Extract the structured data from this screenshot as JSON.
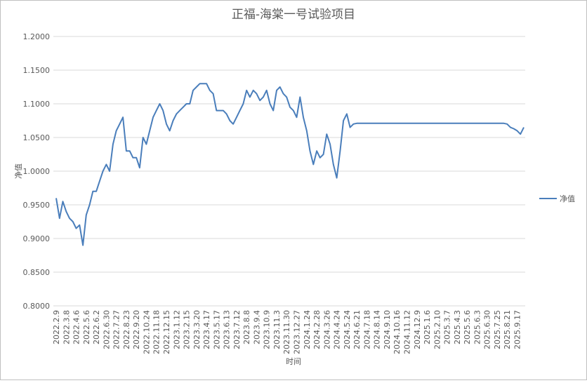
{
  "chart_data": {
    "type": "line",
    "title": "正福-海棠一号试验项目",
    "x_label": "时间",
    "y_label": "净值",
    "categories": [
      "2022.2.9",
      null,
      null,
      "2022.3.8",
      null,
      null,
      "2022.4.6",
      null,
      null,
      "2022.5.6",
      null,
      null,
      "2022.6.2",
      null,
      null,
      "2022.6.30",
      null,
      null,
      "2022.7.27",
      null,
      null,
      "2022.8.23",
      null,
      null,
      "2022.9.20",
      null,
      null,
      "2022.10.24",
      null,
      null,
      "2022.11.18",
      null,
      null,
      "2022.12.15",
      null,
      null,
      "2023.1.12",
      null,
      null,
      "2023.2.15",
      null,
      null,
      "2023.3.20",
      null,
      null,
      "2023.4.17",
      null,
      null,
      "2023.5.17",
      null,
      null,
      "2023.6.13",
      null,
      null,
      "2023.7.12",
      null,
      null,
      "2023.8.8",
      null,
      null,
      "2023.9.4",
      null,
      null,
      "2023.10.9",
      null,
      null,
      "2023.11.3",
      null,
      null,
      "2023.11.30",
      null,
      null,
      "2023.12.27",
      null,
      null,
      "2024.1.24",
      null,
      null,
      "2024.2.28",
      null,
      null,
      "2024.3.26",
      null,
      null,
      "2024.4.24",
      null,
      null,
      "2024.5.24",
      null,
      null,
      "2024.6.21",
      null,
      null,
      "2024.7.18",
      null,
      null,
      "2024.8.14",
      null,
      null,
      "2024.9.10",
      null,
      null,
      "2024.10.16",
      null,
      null,
      "2024.11.12",
      null,
      null,
      "2024.12.9",
      null,
      null,
      "2025.1.6",
      null,
      null,
      "2025.2.10",
      null,
      null,
      "2025.3.7",
      null,
      null,
      "2025.4.3",
      null,
      null,
      "2025.5.6",
      null,
      null,
      "2025.6.3",
      null,
      null,
      "2025.6.30",
      null,
      null,
      "2025.7.25",
      null,
      null,
      "2025.8.21",
      null,
      null,
      "2025.9.17",
      null,
      null
    ],
    "series": [
      {
        "name": "净值",
        "color": "#4a7ebb",
        "values": [
          0.96,
          0.93,
          0.955,
          0.94,
          0.93,
          0.925,
          0.915,
          0.92,
          0.89,
          0.935,
          0.95,
          0.97,
          0.97,
          0.985,
          1.0,
          1.01,
          1.0,
          1.04,
          1.06,
          1.07,
          1.08,
          1.03,
          1.03,
          1.02,
          1.02,
          1.005,
          1.05,
          1.04,
          1.06,
          1.08,
          1.09,
          1.1,
          1.09,
          1.07,
          1.06,
          1.075,
          1.085,
          1.09,
          1.095,
          1.1,
          1.1,
          1.12,
          1.125,
          1.13,
          1.13,
          1.13,
          1.12,
          1.115,
          1.09,
          1.09,
          1.09,
          1.085,
          1.075,
          1.07,
          1.08,
          1.09,
          1.1,
          1.12,
          1.11,
          1.12,
          1.115,
          1.105,
          1.11,
          1.12,
          1.1,
          1.09,
          1.12,
          1.125,
          1.115,
          1.11,
          1.095,
          1.09,
          1.08,
          1.11,
          1.08,
          1.06,
          1.03,
          1.01,
          1.03,
          1.02,
          1.025,
          1.055,
          1.04,
          1.01,
          0.99,
          1.03,
          1.075,
          1.085,
          1.065,
          1.07,
          1.071,
          1.071,
          1.071,
          1.071,
          1.071,
          1.071,
          1.071,
          1.071,
          1.071,
          1.071,
          1.071,
          1.071,
          1.071,
          1.071,
          1.071,
          1.071,
          1.071,
          1.071,
          1.071,
          1.071,
          1.071,
          1.071,
          1.071,
          1.071,
          1.071,
          1.071,
          1.071,
          1.071,
          1.071,
          1.071,
          1.071,
          1.071,
          1.071,
          1.071,
          1.071,
          1.071,
          1.071,
          1.071,
          1.071,
          1.071,
          1.071,
          1.071,
          1.071,
          1.071,
          1.071,
          1.07,
          1.065,
          1.063,
          1.06,
          1.055,
          1.065
        ]
      }
    ],
    "ylim": [
      0.8,
      1.2
    ],
    "yticks": [
      {
        "value": 0.8,
        "label": "0.8000"
      },
      {
        "value": 0.85,
        "label": "0.8500"
      },
      {
        "value": 0.9,
        "label": "0.9000"
      },
      {
        "value": 0.95,
        "label": "0.9500"
      },
      {
        "value": 1.0,
        "label": "1.0000"
      },
      {
        "value": 1.05,
        "label": "1.0500"
      },
      {
        "value": 1.1,
        "label": "1.1000"
      },
      {
        "value": 1.15,
        "label": "1.1500"
      },
      {
        "value": 1.2,
        "label": "1.2000"
      }
    ],
    "grid": true,
    "legend": "right"
  }
}
